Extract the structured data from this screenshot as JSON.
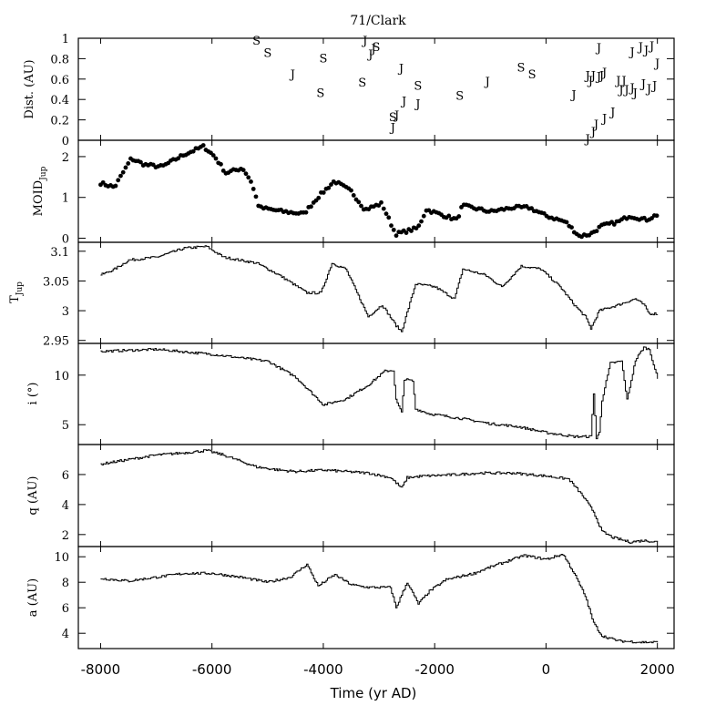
{
  "title": "71/Clark",
  "xlabel": "Time (yr AD)",
  "chart_data": [
    {
      "type": "scatter",
      "name": "distance",
      "ylabel": "Dist. (AU)",
      "xlim": [
        -8400,
        2300
      ],
      "ylim": [
        0,
        1
      ],
      "yticks": [
        "0",
        "0.2",
        "0.4",
        "0.6",
        "0.8",
        "1"
      ],
      "points": [
        {
          "x": -5200,
          "y": 0.98,
          "label": "S"
        },
        {
          "x": -5000,
          "y": 0.86,
          "label": "S"
        },
        {
          "x": -4550,
          "y": 0.65,
          "label": "J"
        },
        {
          "x": -4000,
          "y": 0.81,
          "label": "S"
        },
        {
          "x": -4050,
          "y": 0.47,
          "label": "S"
        },
        {
          "x": -3300,
          "y": 0.57,
          "label": "S"
        },
        {
          "x": -3250,
          "y": 0.98,
          "label": "J"
        },
        {
          "x": -3150,
          "y": 0.85,
          "label": "J"
        },
        {
          "x": -3100,
          "y": 0.9,
          "label": "J"
        },
        {
          "x": -3050,
          "y": 0.92,
          "label": "S"
        },
        {
          "x": -2600,
          "y": 0.71,
          "label": "J"
        },
        {
          "x": -2550,
          "y": 0.39,
          "label": "J"
        },
        {
          "x": -2300,
          "y": 0.54,
          "label": "S"
        },
        {
          "x": -2300,
          "y": 0.36,
          "label": "J"
        },
        {
          "x": -2750,
          "y": 0.23,
          "label": "S"
        },
        {
          "x": -2680,
          "y": 0.25,
          "label": "J"
        },
        {
          "x": -2750,
          "y": 0.13,
          "label": "J"
        },
        {
          "x": -1550,
          "y": 0.44,
          "label": "S"
        },
        {
          "x": -1050,
          "y": 0.58,
          "label": "J"
        },
        {
          "x": -450,
          "y": 0.72,
          "label": "S"
        },
        {
          "x": -250,
          "y": 0.65,
          "label": "S"
        },
        {
          "x": 500,
          "y": 0.45,
          "label": "J"
        },
        {
          "x": 750,
          "y": 0.64,
          "label": "J"
        },
        {
          "x": 800,
          "y": 0.59,
          "label": "J"
        },
        {
          "x": 850,
          "y": 0.64,
          "label": "J"
        },
        {
          "x": 950,
          "y": 0.91,
          "label": "J"
        },
        {
          "x": 950,
          "y": 0.63,
          "label": "J"
        },
        {
          "x": 1000,
          "y": 0.64,
          "label": "J"
        },
        {
          "x": 1050,
          "y": 0.67,
          "label": "J"
        },
        {
          "x": 750,
          "y": 0.02,
          "label": "J"
        },
        {
          "x": 850,
          "y": 0.09,
          "label": "J"
        },
        {
          "x": 900,
          "y": 0.16,
          "label": "J"
        },
        {
          "x": 1050,
          "y": 0.22,
          "label": "J"
        },
        {
          "x": 1200,
          "y": 0.28,
          "label": "J"
        },
        {
          "x": 1300,
          "y": 0.59,
          "label": "J"
        },
        {
          "x": 1350,
          "y": 0.5,
          "label": "J"
        },
        {
          "x": 1400,
          "y": 0.59,
          "label": "J"
        },
        {
          "x": 1450,
          "y": 0.5,
          "label": "J"
        },
        {
          "x": 1550,
          "y": 0.87,
          "label": "J"
        },
        {
          "x": 1550,
          "y": 0.52,
          "label": "J"
        },
        {
          "x": 1600,
          "y": 0.47,
          "label": "J"
        },
        {
          "x": 1700,
          "y": 0.92,
          "label": "J"
        },
        {
          "x": 1750,
          "y": 0.56,
          "label": "J"
        },
        {
          "x": 1800,
          "y": 0.89,
          "label": "J"
        },
        {
          "x": 1850,
          "y": 0.51,
          "label": "J"
        },
        {
          "x": 1900,
          "y": 0.93,
          "label": "J"
        },
        {
          "x": 1950,
          "y": 0.54,
          "label": "J"
        },
        {
          "x": 2000,
          "y": 0.76,
          "label": "J"
        }
      ]
    },
    {
      "type": "scatter",
      "name": "moid",
      "ylabel": "MOID_Jup",
      "ylim": [
        -0.1,
        2.4
      ],
      "yticks": [
        "0",
        "1",
        "2"
      ],
      "knots": [
        [
          -8000,
          1.35
        ],
        [
          -7750,
          1.25
        ],
        [
          -7450,
          1.95
        ],
        [
          -7200,
          1.8
        ],
        [
          -6900,
          1.75
        ],
        [
          -6500,
          2.05
        ],
        [
          -6150,
          2.25
        ],
        [
          -5950,
          2.0
        ],
        [
          -5750,
          1.6
        ],
        [
          -5450,
          1.72
        ],
        [
          -5300,
          1.4
        ],
        [
          -5150,
          0.75
        ],
        [
          -4700,
          0.65
        ],
        [
          -4350,
          0.6
        ],
        [
          -4100,
          1.0
        ],
        [
          -3800,
          1.4
        ],
        [
          -3500,
          1.15
        ],
        [
          -3250,
          0.7
        ],
        [
          -2950,
          0.85
        ],
        [
          -2700,
          0.1
        ],
        [
          -2300,
          0.25
        ],
        [
          -2150,
          0.7
        ],
        [
          -1600,
          0.45
        ],
        [
          -1500,
          0.8
        ],
        [
          -1000,
          0.65
        ],
        [
          -600,
          0.75
        ],
        [
          -300,
          0.75
        ],
        [
          0,
          0.55
        ],
        [
          350,
          0.4
        ],
        [
          600,
          0.05
        ],
        [
          800,
          0.1
        ],
        [
          1000,
          0.3
        ],
        [
          1300,
          0.4
        ],
        [
          1500,
          0.55
        ],
        [
          1800,
          0.45
        ],
        [
          2000,
          0.58
        ]
      ]
    },
    {
      "type": "line",
      "name": "tisserand",
      "ylabel": "T_Jup",
      "ylim": [
        2.945,
        3.115
      ],
      "yticks": [
        "2.95",
        "3",
        "3.05",
        "3.1"
      ],
      "knots": [
        [
          -8000,
          3.06
        ],
        [
          -7750,
          3.07
        ],
        [
          -7500,
          3.085
        ],
        [
          -7000,
          3.09
        ],
        [
          -6500,
          3.105
        ],
        [
          -6100,
          3.108
        ],
        [
          -5800,
          3.09
        ],
        [
          -5200,
          3.08
        ],
        [
          -4800,
          3.06
        ],
        [
          -4300,
          3.03
        ],
        [
          -4050,
          3.03
        ],
        [
          -3850,
          3.08
        ],
        [
          -3600,
          3.07
        ],
        [
          -3350,
          3.02
        ],
        [
          -3200,
          2.99
        ],
        [
          -2950,
          3.01
        ],
        [
          -2700,
          2.975
        ],
        [
          -2600,
          2.965
        ],
        [
          -2350,
          3.045
        ],
        [
          -2000,
          3.04
        ],
        [
          -1650,
          3.02
        ],
        [
          -1500,
          3.07
        ],
        [
          -1100,
          3.06
        ],
        [
          -800,
          3.04
        ],
        [
          -450,
          3.075
        ],
        [
          -100,
          3.07
        ],
        [
          250,
          3.04
        ],
        [
          500,
          3.01
        ],
        [
          700,
          2.99
        ],
        [
          800,
          2.97
        ],
        [
          950,
          3.0
        ],
        [
          1300,
          3.01
        ],
        [
          1600,
          3.02
        ],
        [
          1750,
          3.01
        ],
        [
          1850,
          2.995
        ],
        [
          2000,
          2.995
        ]
      ]
    },
    {
      "type": "line",
      "name": "inclination",
      "ylabel": "i (°)",
      "ylim": [
        3,
        13.2
      ],
      "yticks": [
        "5",
        "10"
      ],
      "knots": [
        [
          -8000,
          12.4
        ],
        [
          -7000,
          12.6
        ],
        [
          -6000,
          12.1
        ],
        [
          -5000,
          11.4
        ],
        [
          -4500,
          9.8
        ],
        [
          -4000,
          7.0
        ],
        [
          -3600,
          7.6
        ],
        [
          -3200,
          9.0
        ],
        [
          -2900,
          10.4
        ],
        [
          -2750,
          10.5
        ],
        [
          -2700,
          7.5
        ],
        [
          -2600,
          6.2
        ],
        [
          -2550,
          9.6
        ],
        [
          -2400,
          9.4
        ],
        [
          -2350,
          6.6
        ],
        [
          -2100,
          6.1
        ],
        [
          -1500,
          5.6
        ],
        [
          -1000,
          5.1
        ],
        [
          -500,
          4.8
        ],
        [
          0,
          4.2
        ],
        [
          500,
          3.8
        ],
        [
          800,
          3.8
        ],
        [
          850,
          8.2
        ],
        [
          900,
          3.6
        ],
        [
          950,
          4.2
        ],
        [
          1000,
          7.5
        ],
        [
          1150,
          11.2
        ],
        [
          1350,
          11.4
        ],
        [
          1450,
          7.5
        ],
        [
          1600,
          11.5
        ],
        [
          1750,
          12.8
        ],
        [
          1850,
          12.6
        ],
        [
          2000,
          9.6
        ]
      ]
    },
    {
      "type": "line",
      "name": "perihelion",
      "ylabel": "q (AU)",
      "ylim": [
        1.2,
        8
      ],
      "yticks": [
        "2",
        "4",
        "6"
      ],
      "knots": [
        [
          -8000,
          6.7
        ],
        [
          -7500,
          7.0
        ],
        [
          -7000,
          7.3
        ],
        [
          -6500,
          7.45
        ],
        [
          -6100,
          7.6
        ],
        [
          -5800,
          7.3
        ],
        [
          -5200,
          6.5
        ],
        [
          -4800,
          6.3
        ],
        [
          -4500,
          6.2
        ],
        [
          -4000,
          6.3
        ],
        [
          -3600,
          6.2
        ],
        [
          -3200,
          6.1
        ],
        [
          -2800,
          5.8
        ],
        [
          -2600,
          5.1
        ],
        [
          -2500,
          5.8
        ],
        [
          -2200,
          5.9
        ],
        [
          -1600,
          6.0
        ],
        [
          -1200,
          6.1
        ],
        [
          -600,
          6.1
        ],
        [
          0,
          5.9
        ],
        [
          400,
          5.7
        ],
        [
          650,
          4.6
        ],
        [
          850,
          3.5
        ],
        [
          1000,
          2.2
        ],
        [
          1200,
          1.8
        ],
        [
          1500,
          1.5
        ],
        [
          1750,
          1.6
        ],
        [
          2000,
          1.5
        ]
      ]
    },
    {
      "type": "line",
      "name": "semimajor",
      "ylabel": "a (AU)",
      "ylim": [
        2.8,
        10.8
      ],
      "yticks": [
        "4",
        "6",
        "8",
        "10"
      ],
      "knots": [
        [
          -8000,
          8.3
        ],
        [
          -7500,
          8.1
        ],
        [
          -7000,
          8.4
        ],
        [
          -6500,
          8.7
        ],
        [
          -6000,
          8.7
        ],
        [
          -5500,
          8.4
        ],
        [
          -5000,
          8.0
        ],
        [
          -4600,
          8.4
        ],
        [
          -4300,
          9.4
        ],
        [
          -4100,
          7.7
        ],
        [
          -3800,
          8.6
        ],
        [
          -3500,
          7.8
        ],
        [
          -3200,
          7.6
        ],
        [
          -2800,
          7.6
        ],
        [
          -2700,
          6.0
        ],
        [
          -2500,
          8.0
        ],
        [
          -2300,
          6.3
        ],
        [
          -2100,
          7.3
        ],
        [
          -1800,
          8.2
        ],
        [
          -1300,
          8.7
        ],
        [
          -1000,
          9.2
        ],
        [
          -600,
          9.8
        ],
        [
          -400,
          10.1
        ],
        [
          0,
          9.8
        ],
        [
          300,
          10.2
        ],
        [
          500,
          8.7
        ],
        [
          700,
          6.9
        ],
        [
          850,
          4.8
        ],
        [
          1000,
          3.8
        ],
        [
          1300,
          3.4
        ],
        [
          1700,
          3.3
        ],
        [
          2000,
          3.3
        ]
      ]
    }
  ],
  "xaxis": {
    "ticks": [
      "-8000",
      "-6000",
      "-4000",
      "-2000",
      "0",
      "2000"
    ]
  }
}
